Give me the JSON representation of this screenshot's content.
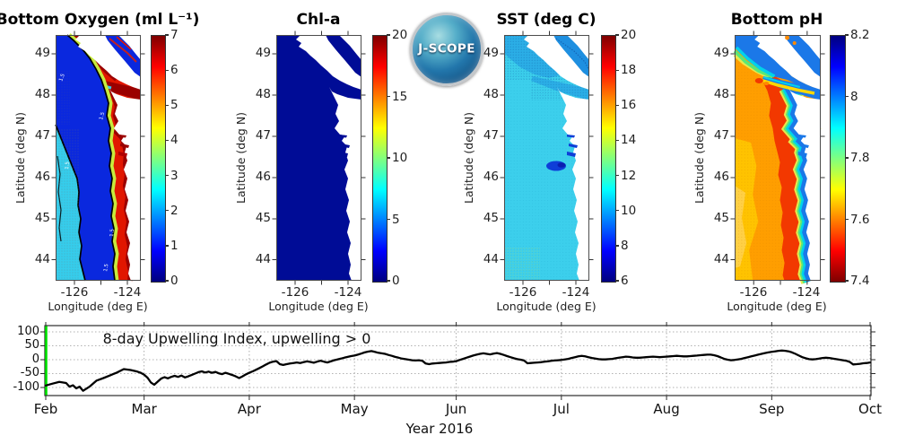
{
  "colors": {
    "background": "#ffffff",
    "accent_green": "#00e400",
    "curve_black": "#000000",
    "axis_dark": "#2b2b2b",
    "chl_navy": "#000c96",
    "sst_cyan": "#3ccfec",
    "ph_orange": "#ff9e00",
    "oxy_pool_blue": "#0a28de",
    "oxy_coastal_red": "#e11600",
    "logo_blue": "#2276ab"
  },
  "logo": {
    "text": "J-SCOPE"
  },
  "map_axes": {
    "lat_label": "Latitude (deg N)",
    "lon_label": "Longitude (deg E)",
    "lat_ticks": [
      "49",
      "48",
      "47",
      "46",
      "45",
      "44"
    ],
    "lon_ticks": [
      "-126",
      "-124"
    ]
  },
  "panels": [
    {
      "id": "bottom-oxygen",
      "title": "Bottom Oxygen (ml L⁻¹)",
      "colorbar_ticks": [
        "7",
        "6",
        "5",
        "4",
        "3",
        "2",
        "1",
        "0"
      ],
      "contour_label": "1.5"
    },
    {
      "id": "chl-a",
      "title": "Chl-a",
      "colorbar_ticks": [
        "20",
        "15",
        "10",
        "5",
        "0"
      ]
    },
    {
      "id": "sst",
      "title": "SST (deg C)",
      "colorbar_ticks": [
        "20",
        "18",
        "16",
        "14",
        "12",
        "10",
        "8",
        "6"
      ]
    },
    {
      "id": "bottom-ph",
      "title": "Bottom pH",
      "colorbar_ticks": [
        "8.2",
        "8",
        "7.8",
        "7.6",
        "7.4"
      ]
    }
  ],
  "timeseries": {
    "title": "8-day Upwelling Index, upwelling > 0",
    "xlabel": "Year 2016",
    "month_labels": [
      "Feb",
      "Mar",
      "Apr",
      "May",
      "Jun",
      "Jul",
      "Aug",
      "Sep",
      "Oct"
    ],
    "ytick_labels": [
      "100",
      "50",
      "0",
      "-50",
      "-100"
    ]
  },
  "chart_data": [
    {
      "type": "heatmap",
      "title": "Bottom Oxygen (ml L⁻¹)",
      "region": {
        "lat": [
          43.5,
          49.5
        ],
        "lon": [
          -126.7,
          -123.5
        ]
      },
      "colorbar": {
        "min": 0,
        "max": 7,
        "ticks": [
          7,
          6,
          5,
          4,
          3,
          2,
          1,
          0
        ],
        "colormap": "jet"
      },
      "pattern": "hypoxic blue pool (~1 ml/L) along mid-shelf outlined by black 1.5 contours, cyan (~2) far offshore with gray stipple, high oxygen (6-7) nearshore band, Strait of Juan de Fuca and north coast"
    },
    {
      "type": "heatmap",
      "title": "Chl-a",
      "region": {
        "lat": [
          43.5,
          49.5
        ],
        "lon": [
          -126.7,
          -123.5
        ]
      },
      "colorbar": {
        "min": 0,
        "max": 20,
        "ticks": [
          20,
          15,
          10,
          5,
          0
        ],
        "colormap": "jet"
      },
      "pattern": "uniform near-zero chlorophyll (dark navy) across entire domain"
    },
    {
      "type": "heatmap",
      "title": "SST (deg C)",
      "region": {
        "lat": [
          43.5,
          49.5
        ],
        "lon": [
          -126.7,
          -123.5
        ]
      },
      "colorbar": {
        "min": 6,
        "max": 20,
        "ticks": [
          20,
          18,
          16,
          14,
          12,
          10,
          8,
          6
        ],
        "colormap": "jet"
      },
      "pattern": "about 10-11 C over most of the domain, slightly cooler stippled water in the north and Strait of Georgia, cold dark-blue plume near Columbia River mouth (~46.2N)"
    },
    {
      "type": "heatmap",
      "title": "Bottom pH",
      "region": {
        "lat": [
          43.5,
          49.5
        ],
        "lon": [
          -126.7,
          -123.5
        ]
      },
      "colorbar": {
        "min": 7.4,
        "max": 8.2,
        "ticks": [
          8.2,
          8.0,
          7.8,
          7.6,
          7.4
        ],
        "colormap": "jet reversed"
      },
      "pattern": "low pH ~7.6 orange offshore with ~7.5 red mid-shelf band, higher pH ~8 blue strip along coast, in Strait of Juan de Fuca (yellow core) and northern straits"
    },
    {
      "type": "line",
      "title": "8-day Upwelling Index, upwelling > 0",
      "x_units": "days since Feb 1 2016",
      "ylim": [
        -130,
        125
      ],
      "yticks": [
        100,
        50,
        0,
        -50,
        -100
      ],
      "x_month_ticks": {
        "Feb": 0,
        "Mar": 29,
        "Apr": 60,
        "May": 91,
        "Jun": 121,
        "Jul": 152,
        "Aug": 183,
        "Sep": 214,
        "Oct": 243
      },
      "marker_line": {
        "x_day": 0,
        "color": "#00e400"
      },
      "points": [
        [
          0,
          -93
        ],
        [
          2,
          -86
        ],
        [
          4,
          -80
        ],
        [
          6,
          -84
        ],
        [
          7,
          -97
        ],
        [
          8,
          -92
        ],
        [
          9,
          -103
        ],
        [
          10,
          -97
        ],
        [
          11,
          -112
        ],
        [
          13,
          -96
        ],
        [
          15,
          -75
        ],
        [
          17,
          -66
        ],
        [
          19,
          -56
        ],
        [
          21,
          -46
        ],
        [
          23,
          -34
        ],
        [
          25,
          -37
        ],
        [
          27,
          -43
        ],
        [
          28,
          -47
        ],
        [
          29,
          -54
        ],
        [
          30,
          -65
        ],
        [
          31,
          -82
        ],
        [
          32,
          -90
        ],
        [
          33,
          -79
        ],
        [
          34,
          -68
        ],
        [
          35,
          -63
        ],
        [
          36,
          -67
        ],
        [
          37,
          -62
        ],
        [
          38,
          -58
        ],
        [
          39,
          -62
        ],
        [
          40,
          -57
        ],
        [
          41,
          -64
        ],
        [
          42,
          -60
        ],
        [
          43,
          -55
        ],
        [
          44,
          -50
        ],
        [
          45,
          -45
        ],
        [
          46,
          -42
        ],
        [
          47,
          -46
        ],
        [
          48,
          -43
        ],
        [
          49,
          -47
        ],
        [
          50,
          -44
        ],
        [
          51,
          -49
        ],
        [
          52,
          -52
        ],
        [
          53,
          -47
        ],
        [
          54,
          -51
        ],
        [
          55,
          -55
        ],
        [
          56,
          -60
        ],
        [
          57,
          -66
        ],
        [
          58,
          -60
        ],
        [
          59,
          -53
        ],
        [
          60,
          -47
        ],
        [
          61,
          -42
        ],
        [
          62,
          -36
        ],
        [
          63,
          -30
        ],
        [
          64,
          -24
        ],
        [
          65,
          -17
        ],
        [
          66,
          -11
        ],
        [
          67,
          -7
        ],
        [
          68,
          -5
        ],
        [
          69,
          -16
        ],
        [
          70,
          -19
        ],
        [
          71,
          -16
        ],
        [
          72,
          -14
        ],
        [
          73,
          -12
        ],
        [
          74,
          -10
        ],
        [
          75,
          -12
        ],
        [
          76,
          -9
        ],
        [
          77,
          -6
        ],
        [
          78,
          -8
        ],
        [
          79,
          -11
        ],
        [
          80,
          -7
        ],
        [
          81,
          -4
        ],
        [
          82,
          -7
        ],
        [
          83,
          -10
        ],
        [
          84,
          -6
        ],
        [
          85,
          -2
        ],
        [
          86,
          1
        ],
        [
          87,
          4
        ],
        [
          88,
          7
        ],
        [
          89,
          10
        ],
        [
          90,
          13
        ],
        [
          91,
          15
        ],
        [
          92,
          18
        ],
        [
          93,
          22
        ],
        [
          94,
          26
        ],
        [
          95,
          29
        ],
        [
          96,
          31
        ],
        [
          97,
          28
        ],
        [
          98,
          25
        ],
        [
          99,
          23
        ],
        [
          100,
          21
        ],
        [
          101,
          17
        ],
        [
          102,
          14
        ],
        [
          103,
          10
        ],
        [
          104,
          7
        ],
        [
          105,
          4
        ],
        [
          106,
          2
        ],
        [
          107,
          0
        ],
        [
          108,
          -2
        ],
        [
          109,
          -3
        ],
        [
          110,
          -2
        ],
        [
          111,
          -4
        ],
        [
          112,
          -14
        ],
        [
          113,
          -16
        ],
        [
          114,
          -14
        ],
        [
          115,
          -13
        ],
        [
          116,
          -12
        ],
        [
          117,
          -11
        ],
        [
          118,
          -10
        ],
        [
          119,
          -8
        ],
        [
          120,
          -7
        ],
        [
          121,
          -5
        ],
        [
          122,
          -1
        ],
        [
          123,
          3
        ],
        [
          124,
          7
        ],
        [
          125,
          11
        ],
        [
          126,
          15
        ],
        [
          127,
          18
        ],
        [
          128,
          21
        ],
        [
          129,
          23
        ],
        [
          130,
          21
        ],
        [
          131,
          19
        ],
        [
          132,
          22
        ],
        [
          133,
          24
        ],
        [
          134,
          21
        ],
        [
          135,
          17
        ],
        [
          136,
          13
        ],
        [
          137,
          9
        ],
        [
          138,
          5
        ],
        [
          139,
          2
        ],
        [
          140,
          0
        ],
        [
          141,
          -3
        ],
        [
          142,
          -13
        ],
        [
          143,
          -12
        ],
        [
          144,
          -11
        ],
        [
          145,
          -10
        ],
        [
          146,
          -9
        ],
        [
          147,
          -7
        ],
        [
          148,
          -6
        ],
        [
          149,
          -4
        ],
        [
          150,
          -3
        ],
        [
          151,
          -2
        ],
        [
          152,
          -1
        ],
        [
          153,
          1
        ],
        [
          154,
          3
        ],
        [
          155,
          6
        ],
        [
          156,
          9
        ],
        [
          157,
          12
        ],
        [
          158,
          14
        ],
        [
          159,
          12
        ],
        [
          160,
          9
        ],
        [
          161,
          6
        ],
        [
          162,
          4
        ],
        [
          163,
          2
        ],
        [
          164,
          1
        ],
        [
          165,
          1
        ],
        [
          166,
          2
        ],
        [
          167,
          3
        ],
        [
          168,
          5
        ],
        [
          169,
          7
        ],
        [
          170,
          9
        ],
        [
          171,
          11
        ],
        [
          172,
          10
        ],
        [
          173,
          8
        ],
        [
          174,
          7
        ],
        [
          175,
          7
        ],
        [
          176,
          8
        ],
        [
          177,
          9
        ],
        [
          178,
          10
        ],
        [
          179,
          11
        ],
        [
          180,
          10
        ],
        [
          181,
          9
        ],
        [
          182,
          10
        ],
        [
          183,
          11
        ],
        [
          184,
          12
        ],
        [
          185,
          13
        ],
        [
          186,
          14
        ],
        [
          187,
          13
        ],
        [
          188,
          12
        ],
        [
          189,
          12
        ],
        [
          190,
          13
        ],
        [
          191,
          14
        ],
        [
          192,
          15
        ],
        [
          193,
          16
        ],
        [
          194,
          17
        ],
        [
          195,
          18
        ],
        [
          196,
          18
        ],
        [
          197,
          16
        ],
        [
          198,
          13
        ],
        [
          199,
          8
        ],
        [
          200,
          3
        ],
        [
          201,
          0
        ],
        [
          202,
          -2
        ],
        [
          203,
          -1
        ],
        [
          204,
          1
        ],
        [
          205,
          3
        ],
        [
          206,
          6
        ],
        [
          207,
          9
        ],
        [
          208,
          12
        ],
        [
          209,
          15
        ],
        [
          210,
          18
        ],
        [
          211,
          21
        ],
        [
          212,
          24
        ],
        [
          213,
          26
        ],
        [
          214,
          28
        ],
        [
          215,
          30
        ],
        [
          216,
          32
        ],
        [
          217,
          33
        ],
        [
          218,
          32
        ],
        [
          219,
          30
        ],
        [
          220,
          26
        ],
        [
          221,
          21
        ],
        [
          222,
          15
        ],
        [
          223,
          9
        ],
        [
          224,
          5
        ],
        [
          225,
          2
        ],
        [
          226,
          1
        ],
        [
          227,
          2
        ],
        [
          228,
          4
        ],
        [
          229,
          6
        ],
        [
          230,
          7
        ],
        [
          231,
          6
        ],
        [
          232,
          4
        ],
        [
          233,
          2
        ],
        [
          234,
          0
        ],
        [
          235,
          -2
        ],
        [
          236,
          -4
        ],
        [
          237,
          -8
        ],
        [
          238,
          -17
        ],
        [
          239,
          -16
        ],
        [
          240,
          -15
        ],
        [
          241,
          -13
        ],
        [
          242,
          -12
        ],
        [
          243,
          -10
        ]
      ]
    }
  ]
}
